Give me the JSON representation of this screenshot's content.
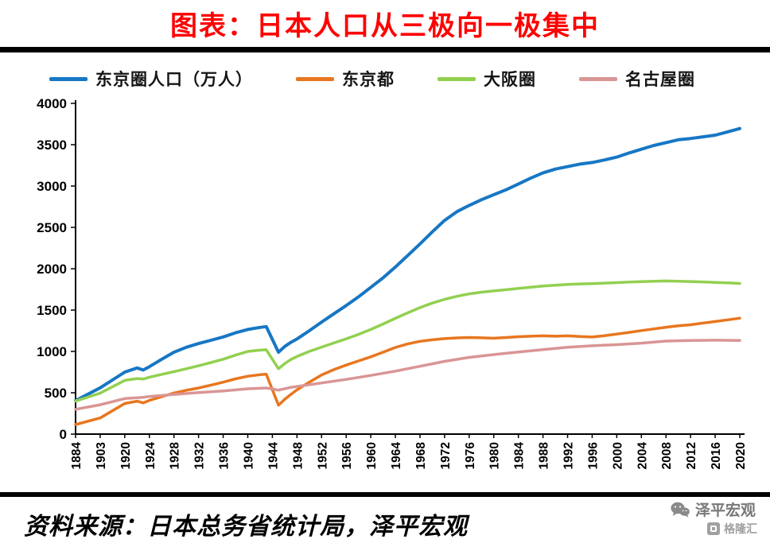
{
  "header": {
    "title": "图表：日本人口从三极向一极集中",
    "title_color": "#ff0000"
  },
  "legend": [
    {
      "label": "东京圈人口（万人）",
      "color": "#1777C4"
    },
    {
      "label": "东京都",
      "color": "#E8761F"
    },
    {
      "label": "大阪圈",
      "color": "#92D050"
    },
    {
      "label": "名古屋圈",
      "color": "#D99594"
    }
  ],
  "footer": {
    "source": "资料来源：日本总务省统计局，泽平宏观",
    "wechat_name": "泽平宏观",
    "watermark": "格隆汇"
  },
  "chart_data": {
    "type": "line",
    "title": "日本人口从三极向一极集中",
    "ylabel": "万人",
    "ylim": [
      0,
      4000
    ],
    "y_ticks": [
      0,
      500,
      1000,
      1500,
      2000,
      2500,
      3000,
      3500,
      4000
    ],
    "x_tick_years": [
      1884,
      1903,
      1920,
      1924,
      1928,
      1932,
      1936,
      1940,
      1944,
      1948,
      1952,
      1956,
      1960,
      1964,
      1968,
      1972,
      1976,
      1980,
      1984,
      1988,
      1992,
      1996,
      2000,
      2004,
      2008,
      2012,
      2016,
      2020
    ],
    "grid": false,
    "legend_position": "top",
    "series": [
      {
        "name": "东京圈人口（万人）",
        "color": "#1777C4",
        "points": [
          [
            1884,
            405
          ],
          [
            1903,
            560
          ],
          [
            1920,
            750
          ],
          [
            1922,
            800
          ],
          [
            1923,
            775
          ],
          [
            1924,
            815
          ],
          [
            1926,
            905
          ],
          [
            1928,
            990
          ],
          [
            1930,
            1050
          ],
          [
            1932,
            1095
          ],
          [
            1934,
            1135
          ],
          [
            1936,
            1175
          ],
          [
            1938,
            1225
          ],
          [
            1940,
            1265
          ],
          [
            1942,
            1290
          ],
          [
            1943,
            1300
          ],
          [
            1945,
            990
          ],
          [
            1946,
            1060
          ],
          [
            1947,
            1110
          ],
          [
            1948,
            1150
          ],
          [
            1950,
            1250
          ],
          [
            1952,
            1355
          ],
          [
            1954,
            1455
          ],
          [
            1956,
            1555
          ],
          [
            1958,
            1660
          ],
          [
            1960,
            1775
          ],
          [
            1962,
            1890
          ],
          [
            1964,
            2020
          ],
          [
            1966,
            2160
          ],
          [
            1968,
            2300
          ],
          [
            1970,
            2445
          ],
          [
            1972,
            2585
          ],
          [
            1974,
            2690
          ],
          [
            1976,
            2765
          ],
          [
            1978,
            2835
          ],
          [
            1980,
            2895
          ],
          [
            1982,
            2955
          ],
          [
            1984,
            3025
          ],
          [
            1986,
            3095
          ],
          [
            1988,
            3160
          ],
          [
            1990,
            3205
          ],
          [
            1992,
            3235
          ],
          [
            1994,
            3265
          ],
          [
            1996,
            3285
          ],
          [
            1998,
            3315
          ],
          [
            2000,
            3350
          ],
          [
            2002,
            3400
          ],
          [
            2004,
            3445
          ],
          [
            2006,
            3490
          ],
          [
            2008,
            3525
          ],
          [
            2010,
            3560
          ],
          [
            2012,
            3575
          ],
          [
            2014,
            3595
          ],
          [
            2016,
            3615
          ],
          [
            2018,
            3655
          ],
          [
            2020,
            3695
          ]
        ]
      },
      {
        "name": "东京都",
        "color": "#E8761F",
        "points": [
          [
            1884,
            115
          ],
          [
            1903,
            195
          ],
          [
            1920,
            370
          ],
          [
            1922,
            398
          ],
          [
            1923,
            378
          ],
          [
            1924,
            408
          ],
          [
            1926,
            452
          ],
          [
            1928,
            497
          ],
          [
            1930,
            530
          ],
          [
            1932,
            558
          ],
          [
            1934,
            592
          ],
          [
            1936,
            628
          ],
          [
            1938,
            668
          ],
          [
            1940,
            700
          ],
          [
            1942,
            718
          ],
          [
            1943,
            725
          ],
          [
            1945,
            350
          ],
          [
            1946,
            420
          ],
          [
            1947,
            480
          ],
          [
            1948,
            535
          ],
          [
            1950,
            628
          ],
          [
            1952,
            715
          ],
          [
            1954,
            780
          ],
          [
            1956,
            835
          ],
          [
            1958,
            885
          ],
          [
            1960,
            935
          ],
          [
            1962,
            990
          ],
          [
            1964,
            1048
          ],
          [
            1966,
            1090
          ],
          [
            1968,
            1122
          ],
          [
            1970,
            1140
          ],
          [
            1972,
            1155
          ],
          [
            1974,
            1163
          ],
          [
            1976,
            1168
          ],
          [
            1978,
            1164
          ],
          [
            1980,
            1160
          ],
          [
            1982,
            1168
          ],
          [
            1984,
            1178
          ],
          [
            1986,
            1184
          ],
          [
            1988,
            1188
          ],
          [
            1990,
            1184
          ],
          [
            1992,
            1188
          ],
          [
            1994,
            1180
          ],
          [
            1996,
            1174
          ],
          [
            1998,
            1190
          ],
          [
            2000,
            1210
          ],
          [
            2002,
            1230
          ],
          [
            2004,
            1252
          ],
          [
            2006,
            1272
          ],
          [
            2008,
            1292
          ],
          [
            2010,
            1310
          ],
          [
            2012,
            1322
          ],
          [
            2014,
            1342
          ],
          [
            2016,
            1362
          ],
          [
            2018,
            1382
          ],
          [
            2020,
            1402
          ]
        ]
      },
      {
        "name": "大阪圈",
        "color": "#92D050",
        "points": [
          [
            1884,
            400
          ],
          [
            1903,
            495
          ],
          [
            1920,
            650
          ],
          [
            1922,
            672
          ],
          [
            1923,
            665
          ],
          [
            1924,
            688
          ],
          [
            1926,
            722
          ],
          [
            1928,
            756
          ],
          [
            1930,
            790
          ],
          [
            1932,
            826
          ],
          [
            1934,
            865
          ],
          [
            1936,
            906
          ],
          [
            1938,
            955
          ],
          [
            1940,
            1000
          ],
          [
            1942,
            1015
          ],
          [
            1943,
            1020
          ],
          [
            1945,
            790
          ],
          [
            1946,
            852
          ],
          [
            1947,
            902
          ],
          [
            1948,
            938
          ],
          [
            1950,
            1000
          ],
          [
            1952,
            1052
          ],
          [
            1954,
            1102
          ],
          [
            1956,
            1152
          ],
          [
            1958,
            1206
          ],
          [
            1960,
            1265
          ],
          [
            1962,
            1332
          ],
          [
            1964,
            1400
          ],
          [
            1966,
            1466
          ],
          [
            1968,
            1530
          ],
          [
            1970,
            1585
          ],
          [
            1972,
            1630
          ],
          [
            1974,
            1666
          ],
          [
            1976,
            1696
          ],
          [
            1978,
            1716
          ],
          [
            1980,
            1732
          ],
          [
            1982,
            1746
          ],
          [
            1984,
            1762
          ],
          [
            1986,
            1776
          ],
          [
            1988,
            1790
          ],
          [
            1990,
            1800
          ],
          [
            1992,
            1810
          ],
          [
            1994,
            1816
          ],
          [
            1996,
            1820
          ],
          [
            1998,
            1826
          ],
          [
            2000,
            1832
          ],
          [
            2002,
            1838
          ],
          [
            2004,
            1843
          ],
          [
            2006,
            1848
          ],
          [
            2008,
            1852
          ],
          [
            2010,
            1849
          ],
          [
            2012,
            1845
          ],
          [
            2014,
            1840
          ],
          [
            2016,
            1835
          ],
          [
            2018,
            1829
          ],
          [
            2020,
            1822
          ]
        ]
      },
      {
        "name": "名古屋圈",
        "color": "#D99594",
        "points": [
          [
            1884,
            300
          ],
          [
            1903,
            355
          ],
          [
            1920,
            430
          ],
          [
            1923,
            445
          ],
          [
            1924,
            455
          ],
          [
            1928,
            480
          ],
          [
            1932,
            502
          ],
          [
            1936,
            522
          ],
          [
            1940,
            548
          ],
          [
            1943,
            558
          ],
          [
            1945,
            532
          ],
          [
            1947,
            565
          ],
          [
            1948,
            576
          ],
          [
            1952,
            618
          ],
          [
            1956,
            662
          ],
          [
            1960,
            710
          ],
          [
            1964,
            762
          ],
          [
            1968,
            820
          ],
          [
            1972,
            880
          ],
          [
            1976,
            928
          ],
          [
            1980,
            962
          ],
          [
            1984,
            992
          ],
          [
            1988,
            1022
          ],
          [
            1992,
            1050
          ],
          [
            1996,
            1068
          ],
          [
            2000,
            1082
          ],
          [
            2004,
            1100
          ],
          [
            2008,
            1125
          ],
          [
            2012,
            1133
          ],
          [
            2016,
            1136
          ],
          [
            2020,
            1133
          ]
        ]
      }
    ]
  }
}
